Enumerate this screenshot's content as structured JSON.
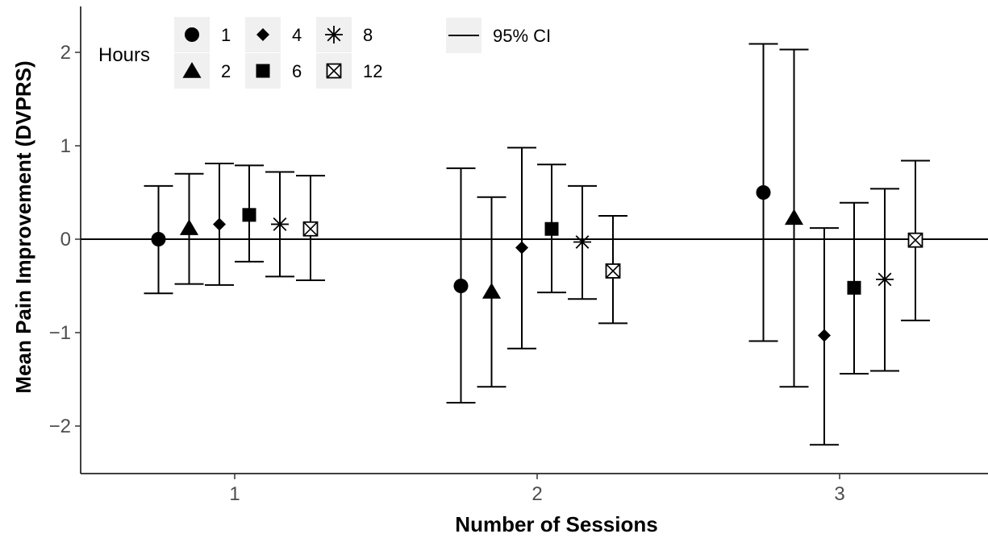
{
  "chart_data": {
    "type": "scatter",
    "xlabel": "Number of Sessions",
    "ylabel": "Mean Pain Improvement (DVPRS)",
    "categories": [
      "1",
      "2",
      "3"
    ],
    "ylim": [
      -2.5,
      2.5
    ],
    "yticks": [
      -2,
      -1,
      0,
      1,
      2
    ],
    "ytick_labels": [
      "−2",
      "−1",
      "0",
      "1",
      "2"
    ],
    "grid": false,
    "reference_line": 0,
    "legend": {
      "title": "Hours",
      "placement": "top-left",
      "ci_label": "95% CI"
    },
    "series": [
      {
        "name": "1",
        "marker": "circle",
        "values": [
          0.0,
          -0.5,
          0.5
        ],
        "ci_low": [
          -0.58,
          -1.75,
          -1.09
        ],
        "ci_high": [
          0.57,
          0.76,
          2.09
        ]
      },
      {
        "name": "2",
        "marker": "triangle",
        "values": [
          0.12,
          -0.56,
          0.23
        ],
        "ci_low": [
          -0.48,
          -1.58,
          -1.58
        ],
        "ci_high": [
          0.7,
          0.45,
          2.03
        ]
      },
      {
        "name": "4",
        "marker": "diamond",
        "values": [
          0.16,
          -0.09,
          -1.03
        ],
        "ci_low": [
          -0.49,
          -1.17,
          -2.2
        ],
        "ci_high": [
          0.81,
          0.98,
          0.12
        ]
      },
      {
        "name": "6",
        "marker": "square",
        "values": [
          0.26,
          0.11,
          -0.52
        ],
        "ci_low": [
          -0.24,
          -0.57,
          -1.44
        ],
        "ci_high": [
          0.79,
          0.8,
          0.39
        ]
      },
      {
        "name": "8",
        "marker": "asterisk",
        "values": [
          0.16,
          -0.03,
          -0.43
        ],
        "ci_low": [
          -0.4,
          -0.64,
          -1.41
        ],
        "ci_high": [
          0.72,
          0.57,
          0.54
        ]
      },
      {
        "name": "12",
        "marker": "boxed-cross",
        "values": [
          0.11,
          -0.34,
          -0.01
        ],
        "ci_low": [
          -0.44,
          -0.9,
          -0.87
        ],
        "ci_high": [
          0.68,
          0.25,
          0.84
        ]
      }
    ]
  }
}
